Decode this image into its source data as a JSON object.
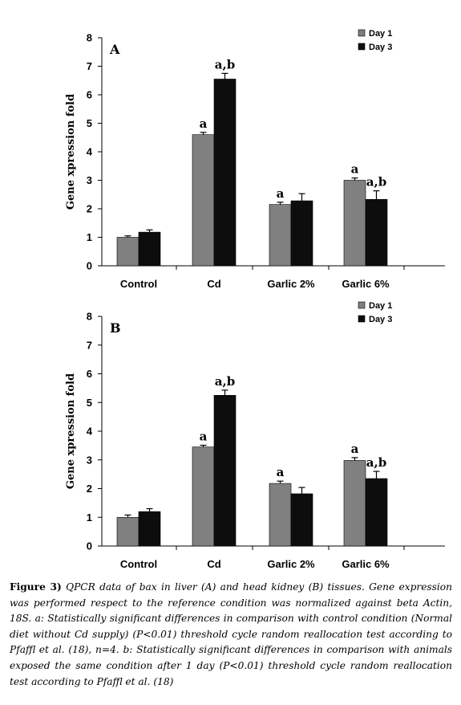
{
  "caption": {
    "label": "Figure 3)",
    "text": "QPCR data of bax in liver (A) and head kidney (B) tissues. Gene expression was performed respect to the reference condition was normalized against beta Actin, 18S. a: Statistically significant differences  in comparison with control condition (Normal diet without Cd supply) (P<0.01) threshold cycle random reallocation test according to Pfaffl et al. (18), n=4. b: Statistically significant differences in comparison with animals exposed the same condition after 1 day (P<0.01) threshold cycle random reallocation test according to Pfaffl et al. (18)"
  },
  "colors": {
    "day1": "#808080",
    "day3": "#0d0d0d"
  },
  "chart_data": [
    {
      "type": "bar",
      "panel_label": "A",
      "ylabel": "Gene xpression fold",
      "ylim": [
        0,
        8
      ],
      "yticks": [
        "0",
        "1",
        "2",
        "3",
        "4",
        "5",
        "6",
        "7",
        "8"
      ],
      "categories": [
        "Control",
        "Cd",
        "Garlic 2%",
        "Garlic 6%"
      ],
      "legend_position": "top-right",
      "series": [
        {
          "name": "Day 1",
          "values": [
            1.0,
            4.6,
            2.15,
            3.0
          ],
          "errors": [
            0.05,
            0.08,
            0.08,
            0.08
          ],
          "labels": [
            "",
            "a",
            "a",
            "a"
          ]
        },
        {
          "name": "Day 3",
          "values": [
            1.18,
            6.55,
            2.28,
            2.33
          ],
          "errors": [
            0.08,
            0.2,
            0.25,
            0.3
          ],
          "labels": [
            "",
            "a,b",
            "",
            "a,b"
          ]
        }
      ]
    },
    {
      "type": "bar",
      "panel_label": "B",
      "ylabel": "Gene xpression fold",
      "ylim": [
        0,
        8
      ],
      "yticks": [
        "0",
        "1",
        "2",
        "3",
        "4",
        "5",
        "6",
        "7",
        "8"
      ],
      "categories": [
        "Control",
        "Cd",
        "Garlic 2%",
        "Garlic 6%"
      ],
      "legend_position": "top-right",
      "series": [
        {
          "name": "Day 1",
          "values": [
            1.0,
            3.45,
            2.18,
            2.98
          ],
          "errors": [
            0.08,
            0.06,
            0.08,
            0.1
          ],
          "labels": [
            "",
            "a",
            "a",
            "a"
          ]
        },
        {
          "name": "Day 3",
          "values": [
            1.2,
            5.25,
            1.82,
            2.35
          ],
          "errors": [
            0.1,
            0.18,
            0.22,
            0.25
          ],
          "labels": [
            "",
            "a,b",
            "",
            "a,b"
          ]
        }
      ]
    }
  ]
}
